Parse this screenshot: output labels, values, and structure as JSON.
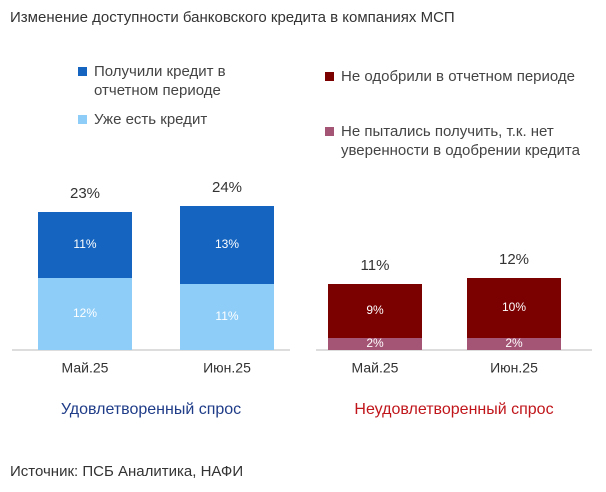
{
  "title": "Изменение доступности банковского кредита в компаниях МСП",
  "source": "Источник: ПСБ Аналитика, НАФИ",
  "chart_data": [
    {
      "type": "stacked_bar",
      "xlabel": "Удовлетворенный спрос",
      "xlabel_color": "#1f3c88",
      "categories": [
        "Май.25",
        "Июн.25"
      ],
      "series": [
        {
          "name": "Уже есть кредит",
          "color": "#8ecdf8",
          "values": [
            12,
            11
          ],
          "value_labels": [
            "12%",
            "11%"
          ]
        },
        {
          "name": "Получили кредит в отчетном периоде",
          "color": "#1565c0",
          "values": [
            11,
            13
          ],
          "value_labels": [
            "11%",
            "13%"
          ]
        }
      ],
      "totals": [
        23,
        24
      ],
      "total_labels": [
        "23%",
        "24%"
      ]
    },
    {
      "type": "stacked_bar",
      "xlabel": "Неудовлетворенный спрос",
      "xlabel_color": "#c0161b",
      "categories": [
        "Май.25",
        "Июн.25"
      ],
      "series": [
        {
          "name": "Не пытались получить, т.к. нет уверенности в одобрении кредита",
          "color": "#a45474",
          "values": [
            2,
            2
          ],
          "value_labels": [
            "2%",
            "2%"
          ]
        },
        {
          "name": "Не одобрили в отчетном периоде",
          "color": "#7b0000",
          "values": [
            9,
            10
          ],
          "value_labels": [
            "9%",
            "10%"
          ]
        }
      ],
      "totals": [
        11,
        12
      ],
      "total_labels": [
        "11%",
        "12%"
      ]
    }
  ]
}
